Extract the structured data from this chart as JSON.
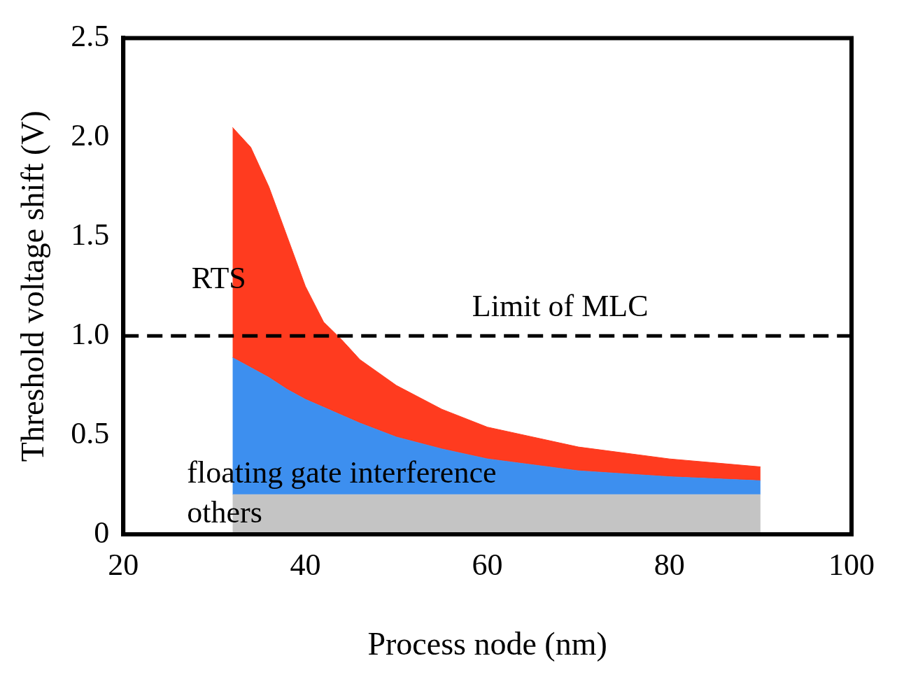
{
  "chart_data": {
    "type": "area",
    "stacked": true,
    "xlabel": "Process node (nm)",
    "ylabel": "Threshold voltage shift (V)",
    "x": [
      32,
      34,
      36,
      38,
      40,
      42,
      44,
      46,
      50,
      55,
      60,
      70,
      80,
      90
    ],
    "series": [
      {
        "name": "others",
        "color": "#c4c4c4",
        "values": [
          0.2,
          0.2,
          0.2,
          0.2,
          0.2,
          0.2,
          0.2,
          0.2,
          0.2,
          0.2,
          0.2,
          0.2,
          0.2,
          0.2
        ]
      },
      {
        "name": "floating gate interference",
        "color": "#3d8fef",
        "values": [
          0.69,
          0.64,
          0.59,
          0.53,
          0.48,
          0.44,
          0.4,
          0.36,
          0.29,
          0.23,
          0.18,
          0.12,
          0.09,
          0.07
        ]
      },
      {
        "name": "RTS",
        "color": "#ff3b1f",
        "values": [
          1.16,
          1.11,
          0.96,
          0.77,
          0.57,
          0.43,
          0.38,
          0.32,
          0.26,
          0.2,
          0.16,
          0.12,
          0.09,
          0.07
        ]
      }
    ],
    "xlim": [
      20,
      100
    ],
    "xticks": [
      20,
      40,
      60,
      80,
      100
    ],
    "ylim": [
      0,
      2.5
    ],
    "yticks": [
      0,
      0.5,
      {
        "value": 1,
        "label": "1.0"
      },
      1.5,
      {
        "value": 2,
        "label": "2.0"
      },
      2.5
    ],
    "ref_lines": [
      {
        "axis": "y",
        "value": 1,
        "label": "Limit of MLC",
        "color": "#000000",
        "line_style": "dashed"
      }
    ],
    "grid": false,
    "legend": false
  }
}
